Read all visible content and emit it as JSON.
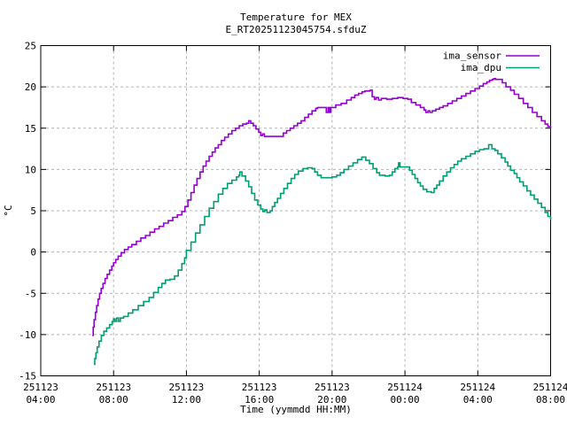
{
  "chart_data": {
    "type": "line",
    "line_style": "steps",
    "title": "Temperature for MEX",
    "subtitle": "E_RT20251123045754.sfduZ",
    "xlabel": "Time (yymmdd HH:MM)",
    "ylabel": "°C",
    "ylim": [
      -15,
      25
    ],
    "x_range": [
      4,
      32
    ],
    "grid": true,
    "grid_color": "#b4b4b4",
    "legend_position": "top-right-inside",
    "yticks": [
      -15,
      -10,
      -5,
      0,
      5,
      10,
      15,
      20,
      25
    ],
    "xticks": [
      {
        "t": 4,
        "date": "251123",
        "time": "04:00"
      },
      {
        "t": 8,
        "date": "251123",
        "time": "08:00"
      },
      {
        "t": 12,
        "date": "251123",
        "time": "12:00"
      },
      {
        "t": 16,
        "date": "251123",
        "time": "16:00"
      },
      {
        "t": 20,
        "date": "251123",
        "time": "20:00"
      },
      {
        "t": 24,
        "date": "251124",
        "time": "00:00"
      },
      {
        "t": 28,
        "date": "251124",
        "time": "04:00"
      },
      {
        "t": 32,
        "date": "251124",
        "time": "08:00"
      }
    ],
    "series": [
      {
        "name": "ima_sensor",
        "color": "#9400d3",
        "points": [
          [
            6.83,
            -10.1
          ],
          [
            6.88,
            -9.1
          ],
          [
            6.93,
            -8.2
          ],
          [
            7.0,
            -7.3
          ],
          [
            7.07,
            -6.5
          ],
          [
            7.15,
            -5.7
          ],
          [
            7.23,
            -5.0
          ],
          [
            7.32,
            -4.4
          ],
          [
            7.42,
            -3.8
          ],
          [
            7.53,
            -3.2
          ],
          [
            7.65,
            -2.7
          ],
          [
            7.78,
            -2.2
          ],
          [
            7.9,
            -1.7
          ],
          [
            8.0,
            -1.3
          ],
          [
            8.12,
            -0.9
          ],
          [
            8.25,
            -0.5
          ],
          [
            8.42,
            -0.1
          ],
          [
            8.6,
            0.3
          ],
          [
            8.8,
            0.6
          ],
          [
            9.0,
            0.9
          ],
          [
            9.25,
            1.3
          ],
          [
            9.5,
            1.7
          ],
          [
            9.75,
            2.0
          ],
          [
            10.0,
            2.4
          ],
          [
            10.25,
            2.8
          ],
          [
            10.5,
            3.1
          ],
          [
            10.75,
            3.5
          ],
          [
            11.0,
            3.8
          ],
          [
            11.25,
            4.2
          ],
          [
            11.5,
            4.5
          ],
          [
            11.75,
            4.9
          ],
          [
            11.92,
            5.5
          ],
          [
            12.08,
            6.3
          ],
          [
            12.25,
            7.2
          ],
          [
            12.42,
            8.1
          ],
          [
            12.58,
            8.9
          ],
          [
            12.75,
            9.7
          ],
          [
            12.92,
            10.4
          ],
          [
            13.08,
            11.0
          ],
          [
            13.25,
            11.6
          ],
          [
            13.42,
            12.1
          ],
          [
            13.58,
            12.6
          ],
          [
            13.75,
            13.0
          ],
          [
            13.92,
            13.5
          ],
          [
            14.1,
            13.9
          ],
          [
            14.3,
            14.3
          ],
          [
            14.5,
            14.7
          ],
          [
            14.7,
            15.0
          ],
          [
            14.9,
            15.3
          ],
          [
            15.1,
            15.5
          ],
          [
            15.3,
            15.6
          ],
          [
            15.42,
            15.9
          ],
          [
            15.53,
            15.6
          ],
          [
            15.67,
            15.3
          ],
          [
            15.82,
            14.9
          ],
          [
            15.97,
            14.5
          ],
          [
            16.08,
            14.1
          ],
          [
            16.18,
            14.3
          ],
          [
            16.28,
            14.0
          ],
          [
            17.2,
            14.0
          ],
          [
            17.32,
            14.4
          ],
          [
            17.5,
            14.7
          ],
          [
            17.7,
            15.0
          ],
          [
            17.9,
            15.3
          ],
          [
            18.1,
            15.6
          ],
          [
            18.3,
            15.9
          ],
          [
            18.5,
            16.3
          ],
          [
            18.7,
            16.7
          ],
          [
            18.9,
            17.1
          ],
          [
            19.1,
            17.4
          ],
          [
            19.2,
            17.5
          ],
          [
            19.62,
            17.5
          ],
          [
            19.68,
            16.9
          ],
          [
            19.78,
            17.5
          ],
          [
            19.85,
            16.9
          ],
          [
            19.93,
            17.5
          ],
          [
            20.2,
            17.8
          ],
          [
            20.5,
            18.0
          ],
          [
            20.8,
            18.4
          ],
          [
            21.05,
            18.7
          ],
          [
            21.25,
            19.0
          ],
          [
            21.45,
            19.2
          ],
          [
            21.65,
            19.4
          ],
          [
            21.8,
            19.5
          ],
          [
            22.08,
            19.6
          ],
          [
            22.2,
            18.8
          ],
          [
            22.33,
            18.5
          ],
          [
            22.42,
            18.7
          ],
          [
            22.55,
            18.4
          ],
          [
            22.7,
            18.6
          ],
          [
            23.0,
            18.5
          ],
          [
            23.3,
            18.6
          ],
          [
            23.6,
            18.7
          ],
          [
            23.9,
            18.6
          ],
          [
            24.15,
            18.5
          ],
          [
            24.35,
            18.1
          ],
          [
            24.6,
            17.8
          ],
          [
            24.85,
            17.5
          ],
          [
            25.05,
            17.2
          ],
          [
            25.15,
            16.9
          ],
          [
            25.27,
            17.1
          ],
          [
            25.37,
            16.9
          ],
          [
            25.5,
            17.1
          ],
          [
            25.7,
            17.3
          ],
          [
            25.9,
            17.5
          ],
          [
            26.1,
            17.7
          ],
          [
            26.35,
            18.0
          ],
          [
            26.6,
            18.3
          ],
          [
            26.85,
            18.6
          ],
          [
            27.1,
            18.9
          ],
          [
            27.35,
            19.2
          ],
          [
            27.6,
            19.5
          ],
          [
            27.85,
            19.8
          ],
          [
            28.1,
            20.1
          ],
          [
            28.3,
            20.4
          ],
          [
            28.5,
            20.6
          ],
          [
            28.65,
            20.8
          ],
          [
            28.8,
            20.9
          ],
          [
            28.88,
            21.0
          ],
          [
            28.98,
            20.9
          ],
          [
            29.2,
            20.9
          ],
          [
            29.35,
            20.5
          ],
          [
            29.55,
            20.0
          ],
          [
            29.8,
            19.6
          ],
          [
            30.0,
            19.1
          ],
          [
            30.25,
            18.6
          ],
          [
            30.5,
            18.0
          ],
          [
            30.75,
            17.5
          ],
          [
            31.0,
            16.9
          ],
          [
            31.25,
            16.4
          ],
          [
            31.5,
            15.9
          ],
          [
            31.7,
            15.5
          ],
          [
            31.85,
            15.2
          ],
          [
            32.0,
            15.0
          ]
        ]
      },
      {
        "name": "ima_dpu",
        "color": "#009e73",
        "points": [
          [
            6.92,
            -13.6
          ],
          [
            6.97,
            -12.9
          ],
          [
            7.03,
            -12.2
          ],
          [
            7.1,
            -11.5
          ],
          [
            7.2,
            -10.8
          ],
          [
            7.33,
            -10.1
          ],
          [
            7.47,
            -9.6
          ],
          [
            7.62,
            -9.2
          ],
          [
            7.78,
            -8.8
          ],
          [
            7.92,
            -8.4
          ],
          [
            8.0,
            -8.1
          ],
          [
            8.08,
            -8.4
          ],
          [
            8.17,
            -8.0
          ],
          [
            8.27,
            -8.4
          ],
          [
            8.37,
            -8.0
          ],
          [
            8.55,
            -7.8
          ],
          [
            8.8,
            -7.4
          ],
          [
            9.05,
            -7.0
          ],
          [
            9.35,
            -6.5
          ],
          [
            9.65,
            -6.0
          ],
          [
            9.95,
            -5.5
          ],
          [
            10.2,
            -4.9
          ],
          [
            10.45,
            -4.3
          ],
          [
            10.65,
            -3.8
          ],
          [
            10.85,
            -3.4
          ],
          [
            11.1,
            -3.3
          ],
          [
            11.35,
            -2.9
          ],
          [
            11.55,
            -2.2
          ],
          [
            11.75,
            -1.4
          ],
          [
            11.9,
            -0.7
          ],
          [
            12.0,
            0.2
          ],
          [
            12.25,
            1.2
          ],
          [
            12.5,
            2.3
          ],
          [
            12.75,
            3.3
          ],
          [
            13.0,
            4.3
          ],
          [
            13.25,
            5.3
          ],
          [
            13.5,
            6.1
          ],
          [
            13.75,
            7.0
          ],
          [
            14.0,
            7.7
          ],
          [
            14.25,
            8.3
          ],
          [
            14.5,
            8.7
          ],
          [
            14.75,
            9.1
          ],
          [
            14.88,
            9.3
          ],
          [
            14.93,
            9.7
          ],
          [
            15.05,
            9.2
          ],
          [
            15.25,
            8.6
          ],
          [
            15.42,
            7.9
          ],
          [
            15.58,
            7.1
          ],
          [
            15.75,
            6.3
          ],
          [
            15.92,
            5.7
          ],
          [
            16.08,
            5.2
          ],
          [
            16.2,
            4.9
          ],
          [
            16.3,
            5.1
          ],
          [
            16.42,
            4.8
          ],
          [
            16.6,
            5.0
          ],
          [
            16.72,
            5.5
          ],
          [
            16.85,
            6.0
          ],
          [
            17.0,
            6.5
          ],
          [
            17.17,
            7.1
          ],
          [
            17.35,
            7.7
          ],
          [
            17.55,
            8.3
          ],
          [
            17.75,
            8.9
          ],
          [
            17.95,
            9.4
          ],
          [
            18.15,
            9.8
          ],
          [
            18.4,
            10.1
          ],
          [
            18.65,
            10.2
          ],
          [
            18.9,
            10.1
          ],
          [
            19.05,
            9.7
          ],
          [
            19.2,
            9.3
          ],
          [
            19.4,
            9.0
          ],
          [
            19.7,
            9.0
          ],
          [
            20.0,
            9.1
          ],
          [
            20.25,
            9.3
          ],
          [
            20.45,
            9.6
          ],
          [
            20.65,
            10.0
          ],
          [
            20.9,
            10.4
          ],
          [
            21.15,
            10.8
          ],
          [
            21.4,
            11.2
          ],
          [
            21.63,
            11.5
          ],
          [
            21.85,
            11.1
          ],
          [
            22.05,
            10.7
          ],
          [
            22.25,
            10.1
          ],
          [
            22.45,
            9.6
          ],
          [
            22.6,
            9.3
          ],
          [
            22.9,
            9.2
          ],
          [
            23.15,
            9.3
          ],
          [
            23.3,
            9.7
          ],
          [
            23.45,
            10.1
          ],
          [
            23.6,
            10.3
          ],
          [
            23.65,
            10.8
          ],
          [
            23.73,
            10.3
          ],
          [
            24.1,
            10.3
          ],
          [
            24.25,
            9.9
          ],
          [
            24.4,
            9.4
          ],
          [
            24.55,
            8.9
          ],
          [
            24.7,
            8.4
          ],
          [
            24.85,
            8.0
          ],
          [
            25.0,
            7.6
          ],
          [
            25.2,
            7.3
          ],
          [
            25.45,
            7.2
          ],
          [
            25.6,
            7.7
          ],
          [
            25.75,
            8.1
          ],
          [
            25.9,
            8.6
          ],
          [
            26.1,
            9.2
          ],
          [
            26.3,
            9.7
          ],
          [
            26.5,
            10.2
          ],
          [
            26.7,
            10.6
          ],
          [
            26.9,
            11.0
          ],
          [
            27.1,
            11.3
          ],
          [
            27.35,
            11.6
          ],
          [
            27.6,
            11.9
          ],
          [
            27.85,
            12.2
          ],
          [
            28.1,
            12.4
          ],
          [
            28.35,
            12.5
          ],
          [
            28.57,
            12.5
          ],
          [
            28.6,
            13.0
          ],
          [
            28.72,
            13.0
          ],
          [
            28.78,
            12.5
          ],
          [
            28.95,
            12.3
          ],
          [
            29.1,
            11.9
          ],
          [
            29.3,
            11.4
          ],
          [
            29.5,
            10.9
          ],
          [
            29.65,
            10.4
          ],
          [
            29.8,
            9.9
          ],
          [
            30.0,
            9.5
          ],
          [
            30.15,
            9.0
          ],
          [
            30.3,
            8.5
          ],
          [
            30.5,
            8.0
          ],
          [
            30.7,
            7.4
          ],
          [
            30.9,
            6.9
          ],
          [
            31.1,
            6.4
          ],
          [
            31.3,
            5.9
          ],
          [
            31.5,
            5.4
          ],
          [
            31.7,
            4.8
          ],
          [
            31.85,
            4.3
          ],
          [
            32.0,
            3.9
          ]
        ]
      }
    ]
  }
}
